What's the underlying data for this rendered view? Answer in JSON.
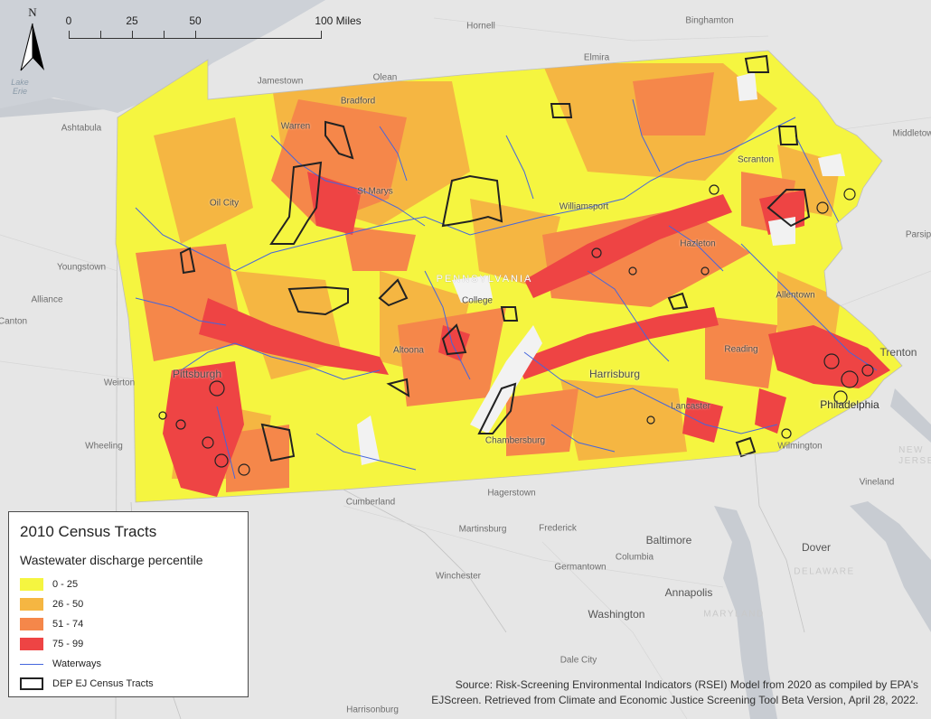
{
  "scale_bar": {
    "labels": [
      "0",
      "25",
      "50",
      "100 Miles"
    ]
  },
  "north_arrow": {
    "label": "N",
    "icon": "north-arrow-icon"
  },
  "places": {
    "hornell": "Hornell",
    "binghamton": "Binghamton",
    "elmira": "Elmira",
    "jamestown": "Jamestown",
    "olean": "Olean",
    "ashtabula": "Ashtabula",
    "lake_erie": "Lake\nErie",
    "middletown": "Middletow",
    "parsippany": "Parsip",
    "youngstown": "Youngstown",
    "alliance": "Alliance",
    "canton": "Canton",
    "weirton": "Weirton",
    "wheeling": "Wheeling",
    "trenton": "Trenton",
    "vineland": "Vineland",
    "new_jersey": "NEW\nJERSE",
    "cumberland": "Cumberland",
    "hagerstown": "Hagerstown",
    "martinsburg": "Martinsburg",
    "frederick": "Frederick",
    "baltimore": "Baltimore",
    "columbia": "Columbia",
    "germantown": "Germantown",
    "winchester": "Winchester",
    "annapolis": "Annapolis",
    "washington": "Washington",
    "dover": "Dover",
    "delaware": "DELAWARE",
    "maryland": "MARYLAND",
    "dale_city": "Dale City",
    "harrisonburg": "Harrisonburg",
    "bradford": "Bradford",
    "warren": "Warren",
    "oil_city": "Oil City",
    "st_marys": "St Marys",
    "williamsport": "Williamsport",
    "scranton": "Scranton",
    "hazleton": "Hazleton",
    "allentown": "Allentown",
    "state_college": "College",
    "altoona": "Altoona",
    "pittsburgh": "Pittsburgh",
    "harrisburg": "Harrisburg",
    "reading": "Reading",
    "lancaster": "Lancaster",
    "philadelphia": "Philadelphia",
    "wilmington": "Wilmington",
    "chambersburg": "Chambersburg",
    "pennsylvania": "PENNSYLVANIA"
  },
  "legend": {
    "title": "2010 Census Tracts",
    "subtitle": "Wastewater discharge percentile",
    "classes": [
      {
        "label": "0 - 25",
        "color": "#f5f540"
      },
      {
        "label": "26 - 50",
        "color": "#f5b642"
      },
      {
        "label": "51 - 74",
        "color": "#f5874a"
      },
      {
        "label": "75 - 99",
        "color": "#ee4444"
      }
    ],
    "waterways": {
      "label": "Waterways",
      "color": "#4466dd"
    },
    "ej_tracts": {
      "label": "DEP EJ Census Tracts",
      "color": "#222222"
    }
  },
  "source": {
    "line1": "Source: Risk-Screening Environmental Indicators (RSEI) Model from 2020 as compiled by EPA's",
    "line2": "EJScreen. Retrieved from Climate and Economic Justice Screening Tool Beta Version, April 28, 2022."
  }
}
